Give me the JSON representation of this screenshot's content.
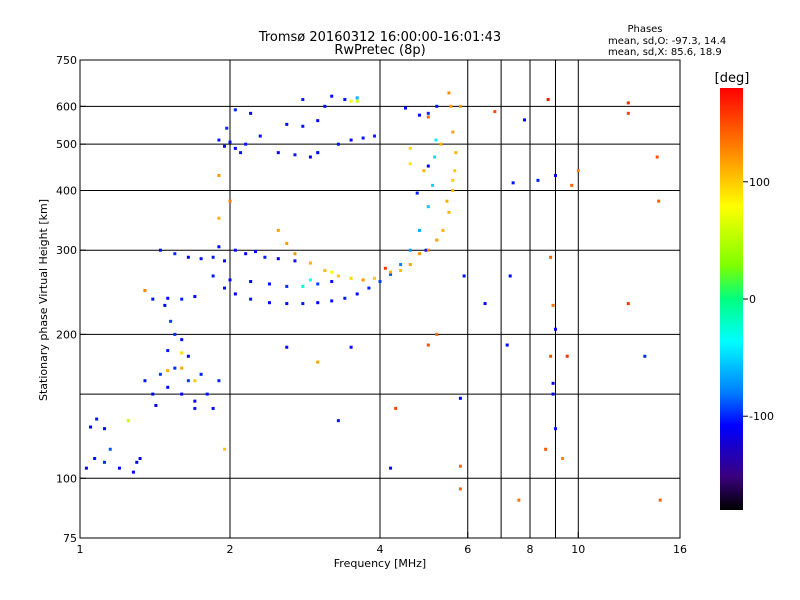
{
  "chart_data": {
    "type": "scatter",
    "title_line1": "Tromsø 20160312 16:00:00-16:01:43",
    "title_line2": "RwPretec (8p)",
    "xlabel": "Frequency [MHz]",
    "ylabel": "Stationary phase Virtual Height [km]",
    "xscale": "log",
    "yscale": "log",
    "xlim": [
      1,
      16
    ],
    "ylim": [
      75,
      750
    ],
    "xticks": [
      1,
      2,
      4,
      6,
      8,
      10,
      16
    ],
    "xtick_labels": [
      "1",
      "2",
      "4",
      "6",
      "8",
      "10",
      "16"
    ],
    "yticks": [
      75,
      100,
      200,
      300,
      400,
      500,
      600,
      750
    ],
    "ytick_labels": [
      "75",
      "100",
      "200",
      "300",
      "400",
      "500",
      "600",
      "750"
    ],
    "xgrid": [
      2,
      4,
      6,
      7,
      8,
      9,
      10
    ],
    "ygrid": [
      100,
      150,
      200,
      300,
      400,
      500,
      600
    ],
    "stats": {
      "heading": "Phases",
      "line_o": "mean, sd,O: -97.3, 14.4",
      "line_x": "mean, sd,X:  85.6, 18.9"
    },
    "colorbar": {
      "label": "[deg]",
      "range": [
        -180,
        180
      ],
      "ticks": [
        100,
        0,
        -100
      ],
      "tick_labels": [
        "100",
        "0",
        "-100"
      ]
    },
    "series": [
      {
        "points": [
          [
            1.05,
            128,
            -110
          ],
          [
            1.08,
            133,
            -105
          ],
          [
            1.12,
            127,
            -108
          ],
          [
            1.03,
            105,
            -112
          ],
          [
            1.07,
            110,
            -106
          ],
          [
            1.12,
            108,
            -100
          ],
          [
            1.2,
            105,
            -110
          ],
          [
            1.28,
            103,
            -108
          ],
          [
            1.3,
            108,
            -112
          ],
          [
            1.32,
            110,
            -115
          ],
          [
            1.15,
            115,
            -90
          ],
          [
            1.35,
            160,
            -105
          ],
          [
            1.4,
            150,
            -110
          ],
          [
            1.45,
            165,
            -95
          ],
          [
            1.5,
            155,
            -108
          ],
          [
            1.55,
            170,
            -100
          ],
          [
            1.6,
            150,
            -112
          ],
          [
            1.65,
            160,
            -96
          ],
          [
            1.7,
            145,
            -110
          ],
          [
            1.75,
            165,
            -102
          ],
          [
            1.8,
            150,
            -105
          ],
          [
            1.85,
            140,
            -108
          ],
          [
            1.5,
            185,
            -105
          ],
          [
            1.55,
            200,
            -100
          ],
          [
            1.6,
            195,
            -108
          ],
          [
            1.48,
            230,
            -110
          ],
          [
            1.52,
            213,
            -96
          ],
          [
            1.42,
            142,
            -112
          ],
          [
            1.65,
            180,
            -110
          ],
          [
            1.7,
            140,
            -105
          ],
          [
            1.9,
            160,
            -102
          ],
          [
            1.4,
            237,
            -105
          ],
          [
            1.5,
            238,
            -110
          ],
          [
            1.6,
            237,
            -102
          ],
          [
            1.7,
            240,
            -108
          ],
          [
            1.35,
            247,
            -120
          ],
          [
            1.45,
            300,
            -108
          ],
          [
            1.55,
            295,
            -100
          ],
          [
            1.65,
            290,
            -112
          ],
          [
            1.75,
            288,
            -106
          ],
          [
            1.85,
            290,
            -104
          ],
          [
            1.95,
            285,
            -110
          ],
          [
            1.9,
            305,
            -108
          ],
          [
            2.05,
            300,
            -106
          ],
          [
            2.15,
            295,
            -112
          ],
          [
            2.25,
            298,
            -108
          ],
          [
            2.35,
            290,
            -104
          ],
          [
            2.5,
            288,
            -110
          ],
          [
            2.7,
            285,
            -106
          ],
          [
            1.85,
            265,
            -105
          ],
          [
            1.95,
            250,
            -108
          ],
          [
            2.05,
            243,
            -110
          ],
          [
            2.2,
            237,
            -106
          ],
          [
            2.4,
            233,
            -110
          ],
          [
            2.6,
            232,
            -108
          ],
          [
            2.8,
            232,
            -105
          ],
          [
            3.0,
            233,
            -110
          ],
          [
            3.2,
            235,
            -106
          ],
          [
            3.4,
            238,
            -104
          ],
          [
            3.6,
            243,
            -108
          ],
          [
            3.8,
            250,
            -102
          ],
          [
            4.0,
            258,
            -96
          ],
          [
            4.2,
            267,
            -90
          ],
          [
            4.4,
            280,
            -80
          ],
          [
            4.6,
            300,
            -70
          ],
          [
            4.8,
            330,
            -60
          ],
          [
            5.0,
            370,
            -50
          ],
          [
            5.1,
            410,
            -45
          ],
          [
            5.15,
            470,
            -40
          ],
          [
            5.18,
            510,
            -35
          ],
          [
            2.0,
            260,
            -108
          ],
          [
            2.2,
            258,
            -110
          ],
          [
            2.4,
            255,
            -106
          ],
          [
            2.6,
            252,
            -100
          ],
          [
            2.8,
            252,
            -20
          ],
          [
            3.0,
            255,
            -96
          ],
          [
            3.2,
            258,
            -108
          ],
          [
            2.9,
            260,
            -30
          ],
          [
            1.9,
            510,
            -105
          ],
          [
            1.95,
            495,
            -110
          ],
          [
            2.0,
            505,
            -108
          ],
          [
            2.05,
            490,
            -112
          ],
          [
            2.1,
            480,
            -106
          ],
          [
            2.15,
            500,
            -104
          ],
          [
            1.97,
            540,
            -100
          ],
          [
            2.05,
            590,
            -102
          ],
          [
            2.2,
            580,
            -110
          ],
          [
            2.3,
            520,
            -106
          ],
          [
            2.5,
            480,
            -108
          ],
          [
            2.7,
            475,
            -104
          ],
          [
            2.9,
            470,
            -110
          ],
          [
            3.0,
            480,
            -40
          ],
          [
            3.0,
            480,
            -108
          ],
          [
            3.3,
            500,
            -106
          ],
          [
            3.5,
            510,
            -110
          ],
          [
            3.7,
            515,
            -104
          ],
          [
            3.9,
            520,
            -102
          ],
          [
            2.6,
            550,
            -108
          ],
          [
            2.8,
            545,
            -106
          ],
          [
            3.0,
            560,
            -110
          ],
          [
            2.8,
            620,
            -104
          ],
          [
            3.2,
            630,
            -108
          ],
          [
            3.4,
            620,
            -106
          ],
          [
            3.6,
            625,
            -60
          ],
          [
            3.1,
            600,
            -108
          ],
          [
            4.5,
            595,
            -110
          ],
          [
            4.8,
            575,
            -108
          ],
          [
            5.0,
            580,
            -100
          ],
          [
            5.2,
            600,
            -106
          ],
          [
            4.75,
            395,
            -104
          ],
          [
            4.95,
            300,
            -108
          ],
          [
            5.0,
            450,
            -110
          ],
          [
            6.5,
            232,
            -110
          ],
          [
            7.3,
            265,
            -108
          ],
          [
            7.8,
            562,
            -110
          ],
          [
            7.4,
            415,
            -106
          ],
          [
            3.3,
            132,
            -105
          ],
          [
            4.2,
            105,
            -108
          ],
          [
            5.9,
            265,
            -106
          ],
          [
            5.8,
            147,
            -110
          ],
          [
            7.2,
            190,
            -108
          ],
          [
            8.3,
            420,
            -104
          ],
          [
            9.0,
            430,
            -112
          ],
          [
            9.0,
            205,
            -110
          ],
          [
            8.9,
            158,
            -108
          ],
          [
            8.9,
            150,
            -110
          ],
          [
            9.0,
            127,
            -106
          ],
          [
            13.6,
            180,
            -100
          ],
          [
            2.6,
            188,
            -108
          ],
          [
            3.5,
            188,
            -106
          ]
        ]
      },
      {
        "points": [
          [
            2.7,
            295,
            120
          ],
          [
            2.9,
            282,
            110
          ],
          [
            3.1,
            272,
            105
          ],
          [
            3.3,
            265,
            100
          ],
          [
            3.5,
            262,
            95
          ],
          [
            3.7,
            260,
            90
          ],
          [
            3.9,
            262,
            100
          ],
          [
            2.5,
            330,
            115
          ],
          [
            2.6,
            310,
            120
          ],
          [
            3.2,
            270,
            80
          ],
          [
            4.2,
            270,
            110
          ],
          [
            4.4,
            272,
            105
          ],
          [
            4.6,
            280,
            115
          ],
          [
            4.8,
            295,
            120
          ],
          [
            5.0,
            300,
            130
          ],
          [
            5.2,
            315,
            118
          ],
          [
            5.35,
            330,
            110
          ],
          [
            5.5,
            360,
            108
          ],
          [
            5.6,
            400,
            105
          ],
          [
            5.65,
            440,
            100
          ],
          [
            5.68,
            480,
            110
          ],
          [
            5.6,
            530,
            115
          ],
          [
            5.55,
            600,
            120
          ],
          [
            5.5,
            640,
            125
          ],
          [
            5.6,
            420,
            98
          ],
          [
            5.45,
            380,
            112
          ],
          [
            3.5,
            615,
            80
          ],
          [
            3.6,
            615,
            60
          ],
          [
            4.6,
            490,
            95
          ],
          [
            4.6,
            455,
            90
          ],
          [
            5.3,
            500,
            110
          ],
          [
            4.9,
            440,
            110
          ],
          [
            5.0,
            570,
            140
          ],
          [
            1.35,
            247,
            125
          ],
          [
            1.5,
            168,
            110
          ],
          [
            1.6,
            170,
            115
          ],
          [
            1.7,
            160,
            100
          ],
          [
            1.9,
            430,
            120
          ],
          [
            1.9,
            350,
            110
          ],
          [
            2.0,
            380,
            130
          ],
          [
            1.25,
            132,
            60
          ],
          [
            1.6,
            183,
            95
          ],
          [
            5.8,
            600,
            120
          ],
          [
            6.8,
            585,
            150
          ],
          [
            7.6,
            90,
            135
          ],
          [
            8.7,
            620,
            170
          ],
          [
            9.5,
            180,
            160
          ],
          [
            9.7,
            410,
            140
          ],
          [
            10.0,
            440,
            130
          ],
          [
            12.6,
            610,
            165
          ],
          [
            12.6,
            580,
            155
          ],
          [
            14.4,
            470,
            150
          ],
          [
            14.5,
            380,
            145
          ],
          [
            14.6,
            90,
            140
          ],
          [
            12.6,
            232,
            160
          ],
          [
            8.8,
            180,
            150
          ],
          [
            8.6,
            115,
            145
          ],
          [
            8.9,
            230,
            135
          ],
          [
            9.3,
            110,
            130
          ],
          [
            8.8,
            290,
            145
          ],
          [
            5.8,
            95,
            140
          ],
          [
            5.8,
            106,
            140
          ],
          [
            5.2,
            200,
            140
          ],
          [
            5.0,
            190,
            150
          ],
          [
            4.3,
            140,
            150
          ],
          [
            4.1,
            275,
            160
          ],
          [
            3.7,
            260,
            120
          ],
          [
            1.95,
            115,
            100
          ],
          [
            3.0,
            175,
            115
          ]
        ]
      }
    ]
  }
}
